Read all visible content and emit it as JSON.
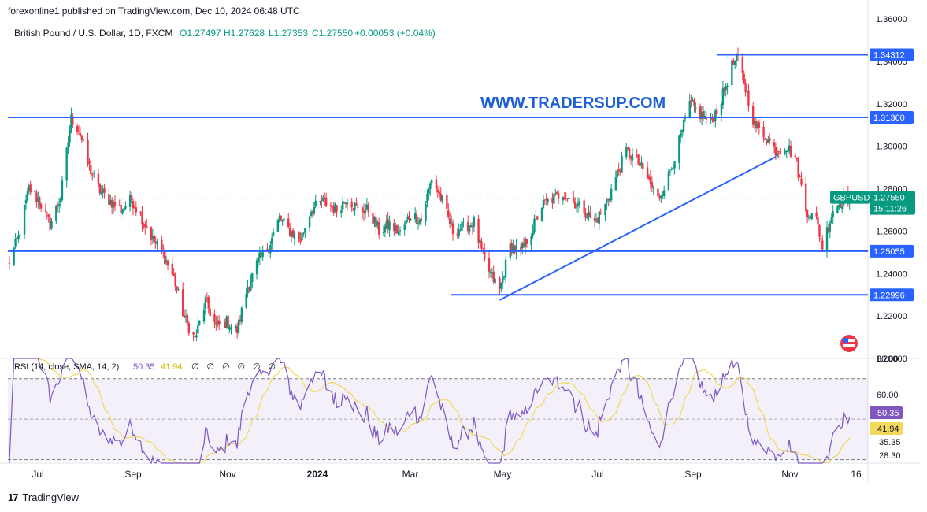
{
  "header": {
    "publisher": "forexonline1 published on TradingView.com, Dec 10, 2024 06:48 UTC"
  },
  "footer": {
    "logo_label": "TradingView",
    "logo_glyph": "17"
  },
  "chart_data": {
    "type": "candlestick",
    "symbol": "GBPUSD",
    "title": "British Pound / U.S. Dollar, 1D, FXCM",
    "ohlc": {
      "o": "O1.27497",
      "h": "H1.27628",
      "l": "L1.27353",
      "c": "C1.27550",
      "change": "+0.00053 (+0.04%)"
    },
    "watermark": "WWW.TRADERSUP.COM",
    "price_axis": {
      "ylim": [
        1.2,
        1.36
      ],
      "ticks": [
        "1.36000",
        "1.34000",
        "1.32000",
        "1.30000",
        "1.28000",
        "1.26000",
        "1.24000",
        "1.22000",
        "1.20000"
      ]
    },
    "time_axis": [
      "Jul",
      "Sep",
      "Nov",
      "2024",
      "Mar",
      "May",
      "Jul",
      "Sep",
      "Nov",
      "16"
    ],
    "horizontal_levels": [
      {
        "label": "1.34312",
        "value": 1.34312
      },
      {
        "label": "1.31360",
        "value": 1.3136
      },
      {
        "label": "1.25055",
        "value": 1.25055
      },
      {
        "label": "1.22996",
        "value": 1.22996
      }
    ],
    "last_price": {
      "symbol": "GBPUSD",
      "price": "1.27550",
      "countdown": "15:11:26",
      "value": 1.2755
    },
    "trendline": {
      "from": {
        "date": "2024-04-22",
        "price": 1.2275
      },
      "to": {
        "date": "2024-10-22",
        "price": 1.295
      }
    },
    "anchors": [
      [
        "2023-06-01",
        1.244
      ],
      [
        "2023-06-08",
        1.257
      ],
      [
        "2023-06-15",
        1.28
      ],
      [
        "2023-06-22",
        1.274
      ],
      [
        "2023-06-29",
        1.263
      ],
      [
        "2023-07-06",
        1.276
      ],
      [
        "2023-07-13",
        1.313
      ],
      [
        "2023-07-18",
        1.308
      ],
      [
        "2023-07-25",
        1.29
      ],
      [
        "2023-08-01",
        1.279
      ],
      [
        "2023-08-08",
        1.274
      ],
      [
        "2023-08-15",
        1.27
      ],
      [
        "2023-08-22",
        1.275
      ],
      [
        "2023-08-29",
        1.266
      ],
      [
        "2023-09-05",
        1.256
      ],
      [
        "2023-09-12",
        1.249
      ],
      [
        "2023-09-19",
        1.238
      ],
      [
        "2023-09-26",
        1.219
      ],
      [
        "2023-10-03",
        1.209
      ],
      [
        "2023-10-10",
        1.227
      ],
      [
        "2023-10-17",
        1.215
      ],
      [
        "2023-10-24",
        1.217
      ],
      [
        "2023-10-31",
        1.213
      ],
      [
        "2023-11-07",
        1.234
      ],
      [
        "2023-11-14",
        1.246
      ],
      [
        "2023-11-21",
        1.253
      ],
      [
        "2023-11-28",
        1.266
      ],
      [
        "2023-12-05",
        1.26
      ],
      [
        "2023-12-12",
        1.256
      ],
      [
        "2023-12-19",
        1.27
      ],
      [
        "2023-12-27",
        1.274
      ],
      [
        "2024-01-05",
        1.27
      ],
      [
        "2024-01-12",
        1.276
      ],
      [
        "2024-01-19",
        1.27
      ],
      [
        "2024-01-26",
        1.27
      ],
      [
        "2024-02-02",
        1.26
      ],
      [
        "2024-02-09",
        1.263
      ],
      [
        "2024-02-16",
        1.259
      ],
      [
        "2024-02-23",
        1.268
      ],
      [
        "2024-03-01",
        1.265
      ],
      [
        "2024-03-08",
        1.285
      ],
      [
        "2024-03-15",
        1.274
      ],
      [
        "2024-03-22",
        1.26
      ],
      [
        "2024-03-29",
        1.262
      ],
      [
        "2024-04-05",
        1.264
      ],
      [
        "2024-04-12",
        1.245
      ],
      [
        "2024-04-22",
        1.232
      ],
      [
        "2024-04-29",
        1.253
      ],
      [
        "2024-05-06",
        1.25
      ],
      [
        "2024-05-13",
        1.26
      ],
      [
        "2024-05-20",
        1.272
      ],
      [
        "2024-05-27",
        1.275
      ],
      [
        "2024-06-03",
        1.278
      ],
      [
        "2024-06-10",
        1.274
      ],
      [
        "2024-06-17",
        1.27
      ],
      [
        "2024-06-24",
        1.264
      ],
      [
        "2024-07-01",
        1.272
      ],
      [
        "2024-07-08",
        1.285
      ],
      [
        "2024-07-15",
        1.298
      ],
      [
        "2024-07-22",
        1.293
      ],
      [
        "2024-07-29",
        1.285
      ],
      [
        "2024-08-05",
        1.275
      ],
      [
        "2024-08-12",
        1.286
      ],
      [
        "2024-08-19",
        1.302
      ],
      [
        "2024-08-26",
        1.32
      ],
      [
        "2024-09-02",
        1.315
      ],
      [
        "2024-09-09",
        1.311
      ],
      [
        "2024-09-16",
        1.322
      ],
      [
        "2024-09-23",
        1.338
      ],
      [
        "2024-09-27",
        1.341
      ],
      [
        "2024-10-01",
        1.33
      ],
      [
        "2024-10-08",
        1.31
      ],
      [
        "2024-10-15",
        1.305
      ],
      [
        "2024-10-22",
        1.298
      ],
      [
        "2024-10-29",
        1.3
      ],
      [
        "2024-11-04",
        1.295
      ],
      [
        "2024-11-11",
        1.27
      ],
      [
        "2024-11-18",
        1.265
      ],
      [
        "2024-11-22",
        1.253
      ],
      [
        "2024-11-29",
        1.27
      ],
      [
        "2024-12-06",
        1.275
      ],
      [
        "2024-12-10",
        1.2755
      ]
    ],
    "rsi": {
      "label": "RSI (14, close, SMA, 14, 2)",
      "rsi_value": "50.35",
      "sma_value": "41.94",
      "na_marks": [
        "∅",
        "∅",
        "∅",
        "∅",
        "∅",
        "∅"
      ],
      "ylim": [
        28.3,
        80
      ],
      "ticks": [
        "80.00",
        "60.00",
        "35.35",
        "28.30"
      ],
      "bands": [
        30,
        70
      ],
      "mid": 50,
      "rsi_color": "#7e57c2",
      "sma_color": "#f2d85b"
    },
    "colors": {
      "up": "#089981",
      "down": "#f23645",
      "level": "#2962ff",
      "watermark": "#1e5fd6"
    }
  }
}
